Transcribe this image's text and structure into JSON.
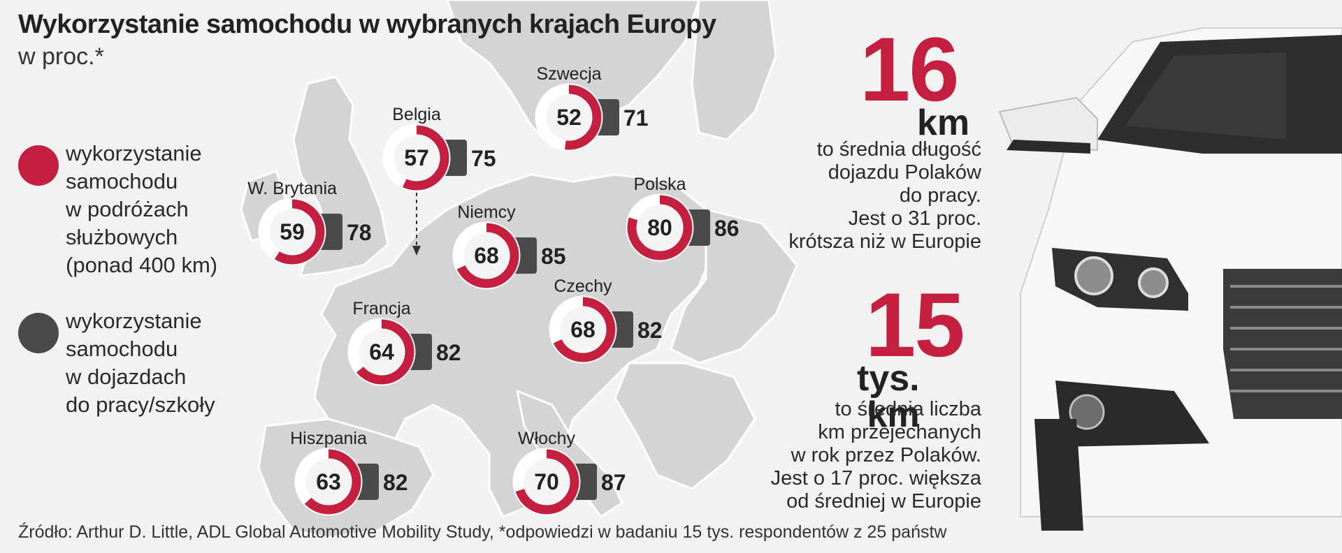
{
  "header": {
    "title": "Wykorzystanie samochodu w wybranych krajach Europy",
    "subtitle": "w proc.*"
  },
  "legend": [
    {
      "label": "wykorzystanie\nsamochodu\nw podróżach\nsłużbowych\n(ponad 400 km)",
      "color": "#c41f3e"
    },
    {
      "label": "wykorzystanie\nsamochodu\nw dojazdach\ndo pracy/szkoły",
      "color": "#4a4a4a"
    }
  ],
  "stats": [
    {
      "number": "16",
      "unit": "km",
      "text": "to średnia długość\ndojazdu Polaków\ndo pracy.\nJest o 31 proc.\nkrótsza niż w Europie"
    },
    {
      "number": "15",
      "unit": "tys. km",
      "text": "to średnia liczba\nkm przejechanych\nw rok przez Polaków.\nJest o 17 proc. większa\nod średniej w Europie"
    }
  ],
  "source": "Źródło:  Arthur D. Little, ADL Global Automotive Mobility Study, *odpowiedzi w badaniu 15 tys. respondentów z 25 państw",
  "colors": {
    "accent": "#c41f3e",
    "bar": "#4a4a4a",
    "ring_bg": "#ffffff",
    "map_land": "#d4d4d4",
    "map_sea": "#f2f2f2"
  },
  "chart_data": {
    "type": "bar",
    "title": "Wykorzystanie samochodu w wybranych krajach Europy",
    "subtitle": "w proc.*",
    "categories": [
      "Szwecja",
      "Belgia",
      "W. Brytania",
      "Polska",
      "Niemcy",
      "Czechy",
      "Francja",
      "Hiszpania",
      "Włochy"
    ],
    "series": [
      {
        "name": "wykorzystanie samochodu w podróżach służbowych (ponad 400 km)",
        "values": [
          52,
          57,
          59,
          80,
          68,
          68,
          64,
          63,
          70
        ],
        "color": "#c41f3e"
      },
      {
        "name": "wykorzystanie samochodu w dojazdach do pracy/szkoły",
        "values": [
          71,
          75,
          78,
          86,
          85,
          82,
          82,
          82,
          87
        ],
        "color": "#4a4a4a"
      }
    ],
    "ylim": [
      0,
      100
    ]
  }
}
